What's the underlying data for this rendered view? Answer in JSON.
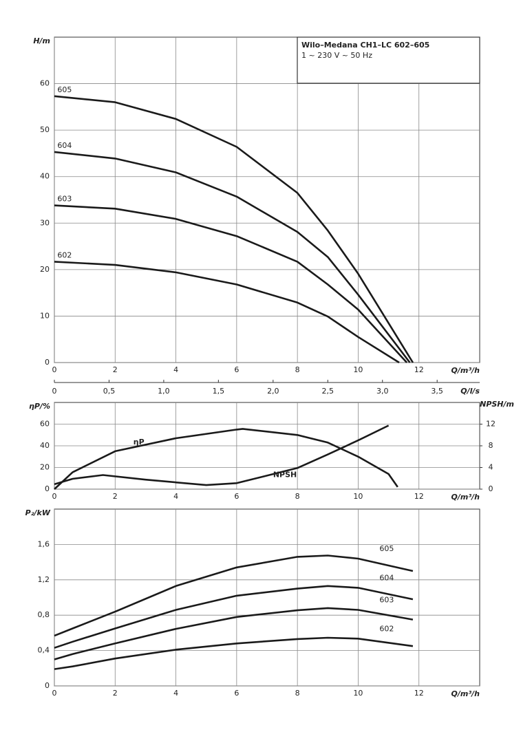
{
  "chart_data": [
    {
      "type": "line",
      "title": "Wilo–Medana CH1–LC 602–605",
      "subtitle": "1 ~ 230 V ~ 50 Hz",
      "ylabel": "H/m",
      "xlabel": "Q/m³/h",
      "x2label": "Q/l/s",
      "xlim": [
        0,
        14
      ],
      "xticks": [
        0,
        2,
        4,
        6,
        8,
        10,
        12
      ],
      "x2lim": [
        0,
        3.889
      ],
      "x2ticks": [
        0,
        {
          "value": 0.5,
          "label": "0,5"
        },
        {
          "value": 1.0,
          "label": "1,0"
        },
        {
          "value": 1.5,
          "label": "1,5"
        },
        {
          "value": 2.0,
          "label": "2,0"
        },
        {
          "value": 2.5,
          "label": "2,5"
        },
        {
          "value": 3.0,
          "label": "3,0"
        },
        {
          "value": 3.5,
          "label": "3,5"
        }
      ],
      "ylim": [
        0,
        70
      ],
      "yticks": [
        0,
        10,
        20,
        30,
        40,
        50,
        60
      ],
      "grid": true,
      "series": [
        {
          "name": "605",
          "color": "#1a1a1a",
          "x": [
            0,
            2,
            4,
            6,
            8,
            9,
            10,
            11.8
          ],
          "values": [
            57.3,
            56.0,
            52.4,
            46.4,
            36.5,
            28.4,
            19.1,
            0
          ]
        },
        {
          "name": "604",
          "color": "#1a1a1a",
          "x": [
            0,
            2,
            4,
            6,
            8,
            9,
            10,
            11.7
          ],
          "values": [
            45.3,
            43.9,
            40.9,
            35.7,
            28.1,
            22.7,
            14.6,
            0
          ]
        },
        {
          "name": "603",
          "color": "#1a1a1a",
          "x": [
            0,
            2,
            4,
            6,
            8,
            9,
            10,
            11.6
          ],
          "values": [
            33.8,
            33.1,
            30.9,
            27.2,
            21.7,
            16.8,
            11.4,
            0
          ]
        },
        {
          "name": "602",
          "color": "#1a1a1a",
          "x": [
            0,
            2,
            4,
            6,
            8,
            9,
            10,
            11.35
          ],
          "values": [
            21.7,
            21.0,
            19.4,
            16.8,
            12.9,
            9.9,
            5.5,
            0
          ]
        }
      ]
    },
    {
      "type": "line",
      "ylabel": "ηP/%",
      "y2label": "NPSH/m",
      "xlabel": "Q/m³/h",
      "xlim": [
        0,
        14
      ],
      "xticks": [
        0,
        2,
        4,
        6,
        8,
        10,
        12
      ],
      "ylim": [
        0,
        80
      ],
      "yticks": [
        0,
        20,
        40,
        60
      ],
      "y2lim": [
        0,
        16
      ],
      "y2ticks": [
        0,
        4,
        8,
        12
      ],
      "grid": true,
      "series": [
        {
          "name": "ηP",
          "color": "#1a1a1a",
          "x": [
            0,
            0.6,
            2,
            4,
            6,
            6.2,
            8,
            9,
            10,
            11,
            11.3
          ],
          "values": [
            0,
            15.6,
            35,
            47,
            55,
            55.6,
            50,
            43,
            30,
            14,
            2
          ]
        },
        {
          "name": "NPSH",
          "color": "#1a1a1a",
          "axis": "y2",
          "x": [
            0,
            0.6,
            1.6,
            3,
            5,
            6,
            8,
            9,
            10,
            11
          ],
          "values": [
            0.9,
            1.9,
            2.6,
            1.75,
            0.75,
            1.1,
            3.9,
            6.4,
            9,
            11.75
          ]
        }
      ]
    },
    {
      "type": "line",
      "ylabel": "P₂/kW",
      "xlabel": "Q/m³/h",
      "xlim": [
        0,
        14
      ],
      "xticks": [
        0,
        2,
        4,
        6,
        8,
        10,
        12
      ],
      "ylim": [
        0,
        2
      ],
      "yticks": [
        0,
        {
          "value": 0.4,
          "label": "0,4"
        },
        {
          "value": 0.8,
          "label": "0,8"
        },
        {
          "value": 1.2,
          "label": "1,2"
        },
        {
          "value": 1.6,
          "label": "1,6"
        }
      ],
      "grid": true,
      "series": [
        {
          "name": "605",
          "color": "#1a1a1a",
          "x": [
            0,
            0.6,
            2,
            4,
            6,
            8,
            9,
            10,
            11.8
          ],
          "values": [
            0.567,
            0.65,
            0.84,
            1.13,
            1.34,
            1.46,
            1.475,
            1.44,
            1.3
          ]
        },
        {
          "name": "604",
          "color": "#1a1a1a",
          "x": [
            0,
            0.6,
            2,
            4,
            6,
            8,
            9,
            10,
            11.8
          ],
          "values": [
            0.43,
            0.5,
            0.65,
            0.86,
            1.02,
            1.1,
            1.13,
            1.11,
            0.98
          ]
        },
        {
          "name": "603",
          "color": "#1a1a1a",
          "x": [
            0,
            0.6,
            2,
            4,
            6,
            8,
            9,
            10,
            11.8
          ],
          "values": [
            0.3,
            0.36,
            0.48,
            0.645,
            0.78,
            0.855,
            0.88,
            0.86,
            0.75
          ]
        },
        {
          "name": "602",
          "color": "#1a1a1a",
          "x": [
            0,
            0.6,
            2,
            4,
            6,
            8,
            9,
            10,
            11.8
          ],
          "values": [
            0.19,
            0.22,
            0.31,
            0.41,
            0.48,
            0.53,
            0.545,
            0.535,
            0.45
          ]
        }
      ]
    }
  ]
}
